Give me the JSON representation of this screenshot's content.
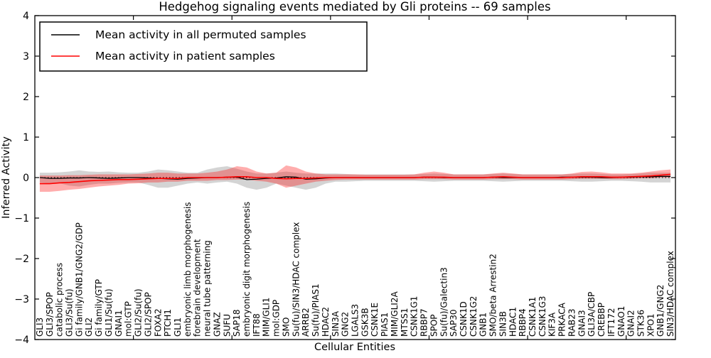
{
  "figure": {
    "title": "Hedgehog signaling events mediated by Gli proteins -- 69 samples",
    "sample_count": "69"
  },
  "chart_data": {
    "type": "line",
    "title": "Hedgehog signaling events mediated by Gli proteins -- 69 samples",
    "xlabel": "Cellular Entities",
    "ylabel": "Inferred Activity",
    "ylim": [
      -4,
      4
    ],
    "yticks": [
      -4,
      -3,
      -2,
      -1,
      0,
      1,
      2,
      3,
      4
    ],
    "xtick_positions": [
      10,
      20,
      30,
      40,
      50,
      60
    ],
    "xrange": [
      0,
      65
    ],
    "grid": false,
    "legend_position": "upper left",
    "zero_line": {
      "y": 0,
      "style": "dotted",
      "color": "#000000"
    },
    "categories": [
      "GLI3",
      "GLI3/SPOP",
      "catabolic process",
      "GLI3/Su(fu)",
      "Gi family/GNB1/GNG2/GDP",
      "GLI2",
      "Gi family/GTP",
      "GLI1/Su(fu)",
      "GNAI1",
      "mol:GTP",
      "GLI2/Su(fu)",
      "GLI2/SPOP",
      "FOXA2",
      "PTCH1",
      "GLI1",
      "embryonic limb morphogenesis",
      "forebrain development",
      "neural tube patterning",
      "GNAZ",
      "SUFU",
      "SAP18",
      "embryonic digit morphogenesis",
      "IFT88",
      "MIM/GLI1",
      "mol:GDP",
      "SMO",
      "Su(fu)/SIN3/HDAC complex",
      "ARRB2",
      "Su(fu)/PIAS1",
      "HDAC2",
      "SIN3A",
      "GNG2",
      "LGALS3",
      "GSK3B",
      "CSNK1E",
      "PIAS1",
      "MIM/GLI2A",
      "MTSS1",
      "CSNK1G1",
      "RBBP7",
      "SPOP",
      "Su(fu)/Galectin3",
      "SAP30",
      "CSNK1D",
      "CSNK1G2",
      "GNB1",
      "SMO/beta Arrestin2",
      "SIN3B",
      "HDAC1",
      "RBBP4",
      "CSNK1A1",
      "CSNK1G3",
      "KIF3A",
      "PRKACA",
      "RAB23",
      "GNAI3",
      "GLI3A/CBP",
      "CREBBP",
      "IFT172",
      "GNAO1",
      "GNAI2",
      "STK36",
      "XPO1",
      "GNB1/GNG2",
      "SIN3/HDAC complex"
    ],
    "series": [
      {
        "name": "Mean activity in all permuted samples",
        "color": "#000000",
        "values": [
          0,
          -0.02,
          -0.02,
          -0.01,
          -0.01,
          0,
          -0.01,
          -0.02,
          -0.01,
          0,
          0,
          -0.01,
          -0.02,
          -0.03,
          -0.04,
          -0.02,
          -0.01,
          0,
          0,
          0.01,
          0.01,
          -0.05,
          -0.04,
          -0.02,
          -0.01,
          0.02,
          0.01,
          -0.04,
          -0.03,
          -0.01,
          0,
          0,
          0,
          0,
          0,
          0,
          0,
          0,
          0,
          0.01,
          0.01,
          0,
          0,
          0,
          0,
          0,
          0.01,
          0,
          0,
          0,
          0,
          0,
          0,
          0.01,
          0.01,
          0.01,
          0.01,
          0,
          0,
          0.01,
          0.01,
          0.02,
          0.02,
          0.03,
          0.03
        ]
      },
      {
        "name": "Mean activity in patient samples",
        "color": "#ff0000",
        "values": [
          -0.15,
          -0.15,
          -0.13,
          -0.12,
          -0.1,
          -0.08,
          -0.07,
          -0.06,
          -0.05,
          -0.05,
          -0.04,
          -0.03,
          -0.02,
          -0.02,
          -0.02,
          0,
          0,
          0,
          0,
          0.01,
          0.02,
          0.02,
          0,
          0,
          -0.02,
          -0.03,
          -0.02,
          -0.02,
          -0.01,
          0,
          0,
          0,
          0,
          0,
          0,
          0,
          0,
          0,
          0,
          0.01,
          0.01,
          0.01,
          0,
          0,
          0,
          0,
          0.01,
          0.02,
          0.01,
          0,
          0,
          0,
          0,
          0,
          0.01,
          0.02,
          0.02,
          0.02,
          0.01,
          0.01,
          0.02,
          0.03,
          0.04,
          0.06,
          0.08
        ]
      }
    ],
    "bands": [
      {
        "name": "permuted-samples-range",
        "color": "#a0a0a0",
        "opacity": 0.45,
        "upper": [
          0.12,
          0.12,
          0.13,
          0.15,
          0.18,
          0.15,
          0.14,
          0.15,
          0.13,
          0.12,
          0.12,
          0.15,
          0.2,
          0.18,
          0.15,
          0.12,
          0.12,
          0.2,
          0.25,
          0.28,
          0.22,
          0.15,
          0.1,
          0.1,
          0.12,
          0.15,
          0.12,
          0.1,
          0.1,
          0.1,
          0.1,
          0.09,
          0.08,
          0.08,
          0.08,
          0.08,
          0.08,
          0.08,
          0.08,
          0.09,
          0.1,
          0.09,
          0.08,
          0.08,
          0.08,
          0.08,
          0.09,
          0.1,
          0.09,
          0.08,
          0.08,
          0.08,
          0.08,
          0.08,
          0.09,
          0.1,
          0.1,
          0.09,
          0.08,
          0.08,
          0.09,
          0.1,
          0.12,
          0.12,
          0.12
        ],
        "lower": [
          -0.12,
          -0.15,
          -0.14,
          -0.2,
          -0.22,
          -0.18,
          -0.15,
          -0.15,
          -0.13,
          -0.12,
          -0.12,
          -0.18,
          -0.25,
          -0.25,
          -0.2,
          -0.15,
          -0.12,
          -0.15,
          -0.12,
          -0.1,
          -0.15,
          -0.25,
          -0.3,
          -0.25,
          -0.15,
          -0.2,
          -0.25,
          -0.3,
          -0.25,
          -0.15,
          -0.1,
          -0.1,
          -0.09,
          -0.08,
          -0.08,
          -0.08,
          -0.08,
          -0.08,
          -0.08,
          -0.09,
          -0.1,
          -0.09,
          -0.08,
          -0.08,
          -0.08,
          -0.08,
          -0.09,
          -0.1,
          -0.09,
          -0.08,
          -0.08,
          -0.08,
          -0.08,
          -0.08,
          -0.09,
          -0.1,
          -0.1,
          -0.09,
          -0.08,
          -0.08,
          -0.09,
          -0.1,
          -0.12,
          -0.12,
          -0.12
        ]
      },
      {
        "name": "patient-samples-range",
        "color": "#ff0000",
        "opacity": 0.32,
        "upper": [
          0.05,
          0.05,
          0.05,
          0.06,
          0.06,
          0.07,
          0.08,
          0.08,
          0.08,
          0.08,
          0.09,
          0.1,
          0.12,
          0.12,
          0.1,
          0.1,
          0.1,
          0.12,
          0.15,
          0.2,
          0.28,
          0.25,
          0.15,
          0.1,
          0.12,
          0.3,
          0.25,
          0.15,
          0.1,
          0.08,
          0.08,
          0.08,
          0.08,
          0.07,
          0.07,
          0.07,
          0.07,
          0.07,
          0.08,
          0.12,
          0.15,
          0.12,
          0.08,
          0.08,
          0.08,
          0.08,
          0.1,
          0.12,
          0.1,
          0.08,
          0.08,
          0.08,
          0.08,
          0.08,
          0.1,
          0.14,
          0.15,
          0.13,
          0.1,
          0.1,
          0.1,
          0.12,
          0.15,
          0.18,
          0.2
        ],
        "lower": [
          -0.35,
          -0.35,
          -0.33,
          -0.3,
          -0.28,
          -0.25,
          -0.22,
          -0.2,
          -0.18,
          -0.15,
          -0.14,
          -0.12,
          -0.12,
          -0.1,
          -0.1,
          -0.08,
          -0.08,
          -0.08,
          -0.06,
          -0.06,
          -0.05,
          -0.05,
          -0.08,
          -0.1,
          -0.15,
          -0.25,
          -0.2,
          -0.15,
          -0.1,
          -0.08,
          -0.06,
          -0.05,
          -0.05,
          -0.05,
          -0.05,
          -0.05,
          -0.05,
          -0.05,
          -0.05,
          -0.04,
          -0.04,
          -0.04,
          -0.05,
          -0.05,
          -0.05,
          -0.05,
          -0.04,
          -0.04,
          -0.04,
          -0.05,
          -0.05,
          -0.05,
          -0.05,
          -0.05,
          -0.04,
          -0.03,
          -0.03,
          -0.03,
          -0.04,
          -0.04,
          -0.03,
          -0.02,
          -0.02,
          0.0,
          0.0
        ]
      }
    ]
  }
}
